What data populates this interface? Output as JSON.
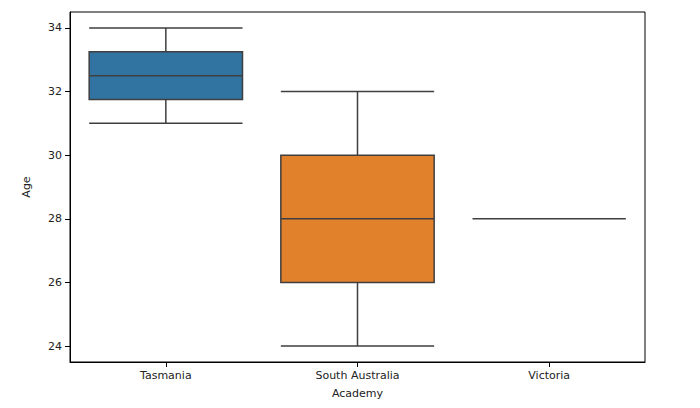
{
  "chart_data": {
    "type": "box",
    "x_label": "Academy",
    "y_label": "Age",
    "categories": [
      "Tasmania",
      "South Australia",
      "Victoria"
    ],
    "values": [
      [
        31,
        31.75,
        32.5,
        33.25,
        34
      ],
      [
        24,
        26,
        28,
        30,
        32
      ],
      [
        28,
        28,
        28,
        28,
        28
      ]
    ],
    "colors": [
      "#3274a1",
      "#e1812c",
      "#3a923a"
    ],
    "ylim": [
      23.5,
      34.5
    ],
    "yticks": [
      24,
      26,
      28,
      30,
      32,
      34
    ],
    "grid": false
  }
}
